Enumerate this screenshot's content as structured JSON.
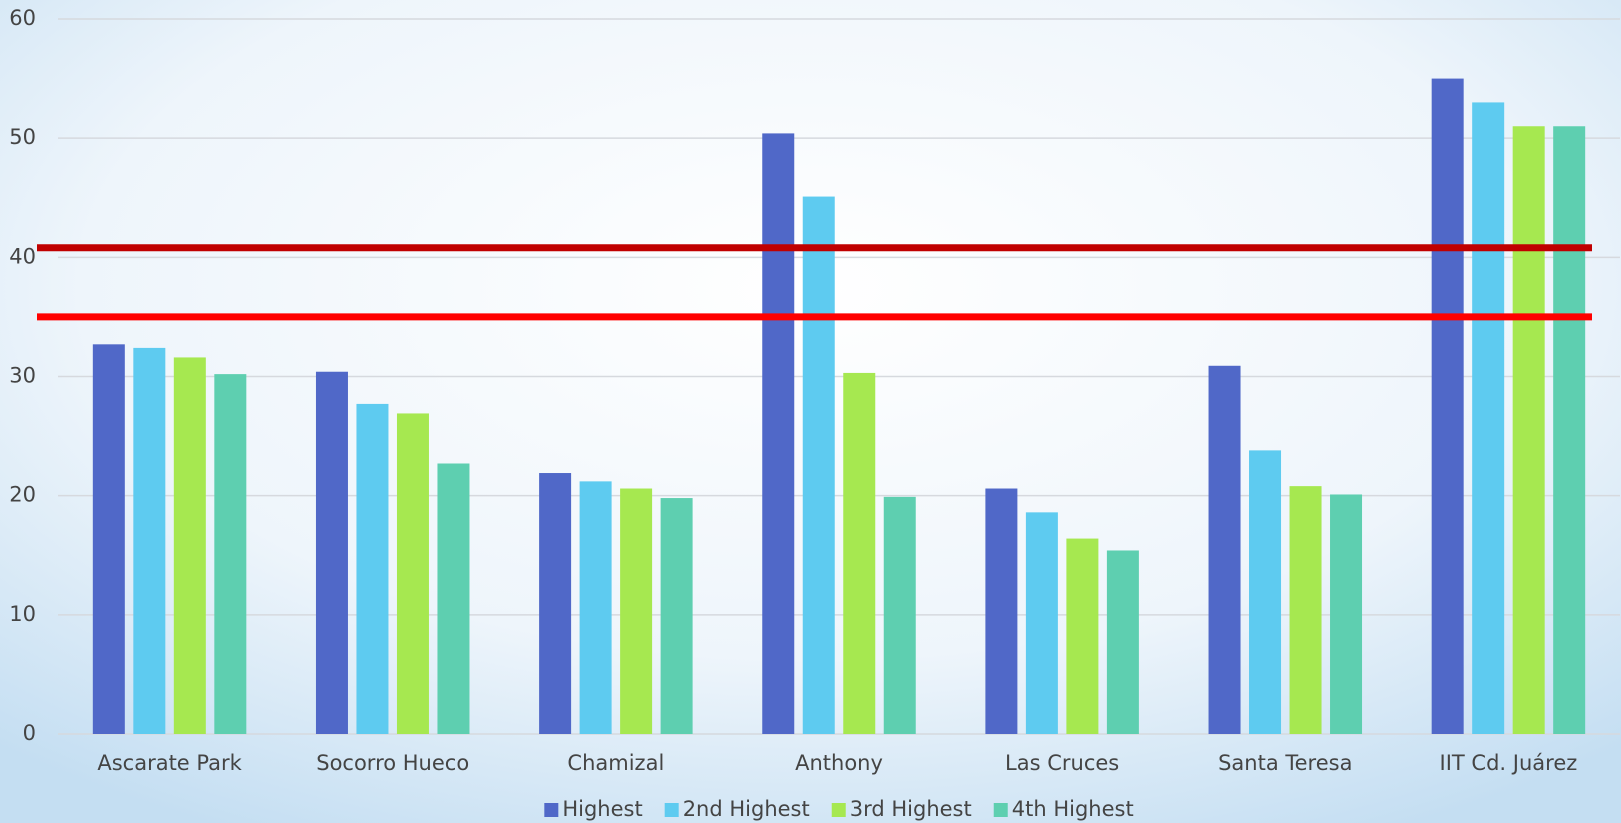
{
  "chart_data": {
    "type": "bar",
    "categories": [
      "Ascarate Park",
      "Socorro Hueco",
      "Chamizal",
      "Anthony",
      "Las Cruces",
      "Santa Teresa",
      "IIT Cd. Juárez"
    ],
    "series": [
      {
        "name": "Highest",
        "color": "#5068c8",
        "values": [
          32.7,
          30.4,
          21.9,
          50.4,
          20.6,
          30.9,
          55.0
        ]
      },
      {
        "name": "2nd Highest",
        "color": "#5ecbf0",
        "values": [
          32.4,
          27.7,
          21.2,
          45.1,
          18.6,
          23.8,
          53.0
        ]
      },
      {
        "name": "3rd Highest",
        "color": "#a6e850",
        "values": [
          31.6,
          26.9,
          20.6,
          30.3,
          16.4,
          20.8,
          51.0
        ]
      },
      {
        "name": "4th Highest",
        "color": "#5ecfb0",
        "values": [
          30.2,
          22.7,
          19.8,
          19.9,
          15.4,
          20.1,
          51.0
        ]
      }
    ],
    "hlines": [
      {
        "value": 40.8,
        "color": "#c00000"
      },
      {
        "value": 35.0,
        "color": "#ff0000"
      }
    ],
    "ylim": [
      0,
      60
    ],
    "yticks": [
      0,
      10,
      20,
      30,
      40,
      50,
      60
    ],
    "grid": true,
    "legend": "bottom"
  }
}
